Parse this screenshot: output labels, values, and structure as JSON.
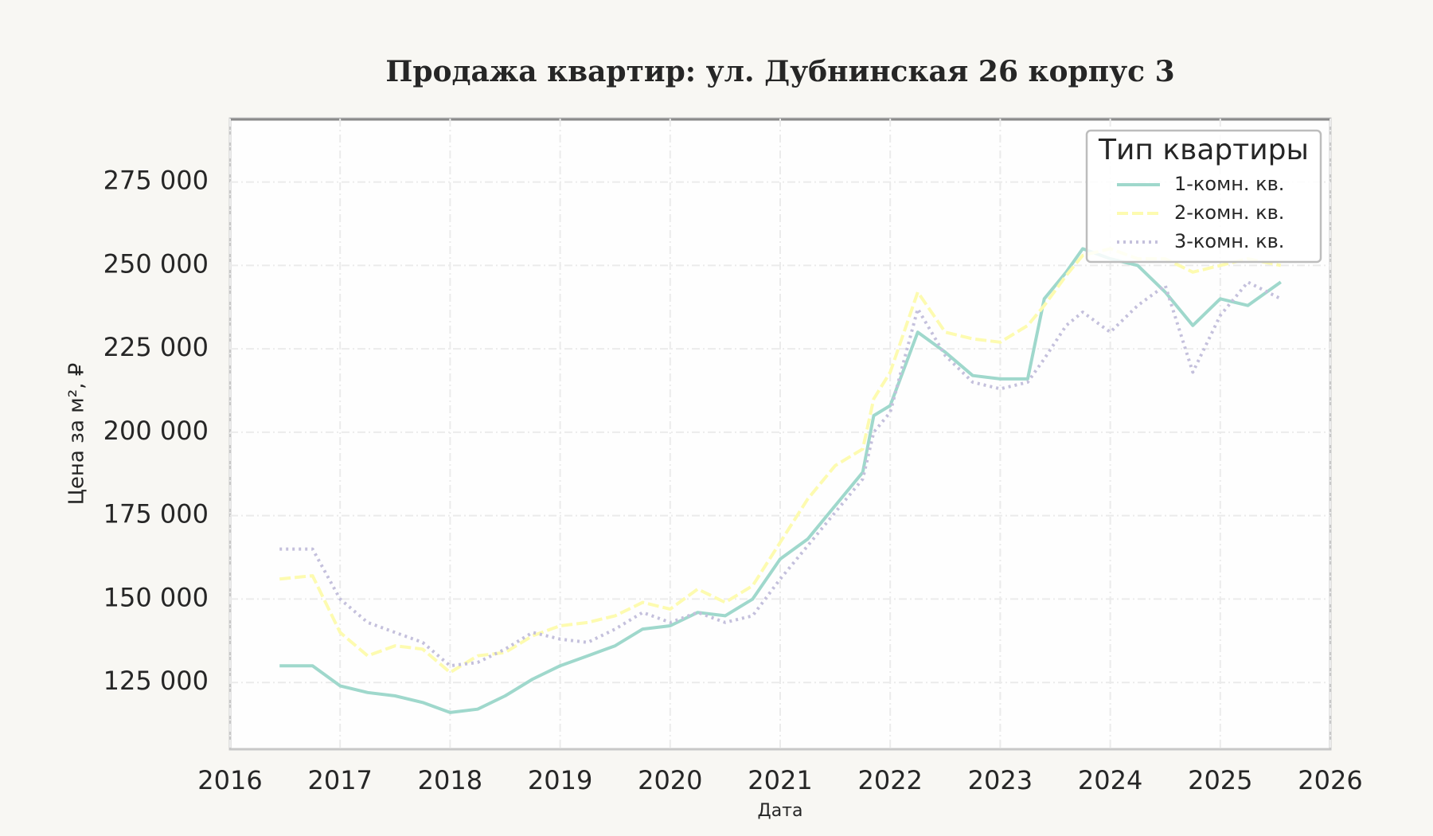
{
  "chart_data": {
    "type": "line",
    "title": "Продажа квартир: ул. Дубнинская 26 корпус 3",
    "x_label": "Дата",
    "y_label": "Цена за м², ₽",
    "legend_title": "Тип квартиры",
    "legend": "upper right",
    "grid": true,
    "x": [
      2016.45,
      2016.75,
      2017.0,
      2017.25,
      2017.5,
      2017.75,
      2018.0,
      2018.25,
      2018.5,
      2018.75,
      2019.0,
      2019.25,
      2019.5,
      2019.75,
      2020.0,
      2020.25,
      2020.5,
      2020.75,
      2021.0,
      2021.25,
      2021.5,
      2021.75,
      2021.85,
      2022.0,
      2022.25,
      2022.5,
      2022.75,
      2023.0,
      2023.25,
      2023.4,
      2023.6,
      2023.75,
      2024.0,
      2024.25,
      2024.5,
      2024.75,
      2025.0,
      2025.25,
      2025.55
    ],
    "series": [
      {
        "name": "1-комн. кв.",
        "color": "#9fd8cc",
        "dash": "solid",
        "values": [
          130000,
          130000,
          124000,
          122000,
          121000,
          119000,
          116000,
          117000,
          121000,
          126000,
          130000,
          133000,
          136000,
          141000,
          142000,
          146000,
          145000,
          150000,
          162000,
          168000,
          178000,
          188000,
          205000,
          208000,
          230000,
          224000,
          217000,
          216000,
          216000,
          240000,
          248000,
          255000,
          252000,
          250000,
          242000,
          232000,
          240000,
          238000,
          245000
        ]
      },
      {
        "name": "2-комн. кв.",
        "color": "#fdfbb0",
        "dash": "dashed",
        "values": [
          156000,
          157000,
          140000,
          133000,
          136000,
          135000,
          128000,
          133000,
          134000,
          139000,
          142000,
          143000,
          145000,
          149000,
          147000,
          153000,
          149000,
          154000,
          167000,
          180000,
          190000,
          195000,
          210000,
          218000,
          242000,
          230000,
          228000,
          227000,
          232000,
          238000,
          247000,
          253000,
          255000,
          252000,
          252000,
          248000,
          250000,
          252000,
          250000
        ]
      },
      {
        "name": "3-комн. кв.",
        "color": "#c4c0dc",
        "dash": "dotted",
        "values": [
          165000,
          165000,
          150000,
          143000,
          140000,
          137000,
          130000,
          131000,
          135000,
          140000,
          138000,
          137000,
          141000,
          146000,
          143000,
          146000,
          143000,
          145000,
          156000,
          166000,
          176000,
          186000,
          200000,
          206000,
          237000,
          223000,
          215000,
          213000,
          215000,
          222000,
          232000,
          236000,
          230000,
          238000,
          244000,
          218000,
          235000,
          245000,
          240000
        ]
      }
    ],
    "xlim": [
      2016,
      2026
    ],
    "xticks": [
      2016,
      2017,
      2018,
      2019,
      2020,
      2021,
      2022,
      2023,
      2024,
      2025,
      2026
    ],
    "ylim": [
      105000,
      294000
    ],
    "yticks": [
      {
        "value": 125000,
        "label": "125 000"
      },
      {
        "value": 150000,
        "label": "150 000"
      },
      {
        "value": 175000,
        "label": "175 000"
      },
      {
        "value": 200000,
        "label": "200 000"
      },
      {
        "value": 225000,
        "label": "225 000"
      },
      {
        "value": 250000,
        "label": "250 000"
      },
      {
        "value": 275000,
        "label": "275 000"
      }
    ]
  }
}
